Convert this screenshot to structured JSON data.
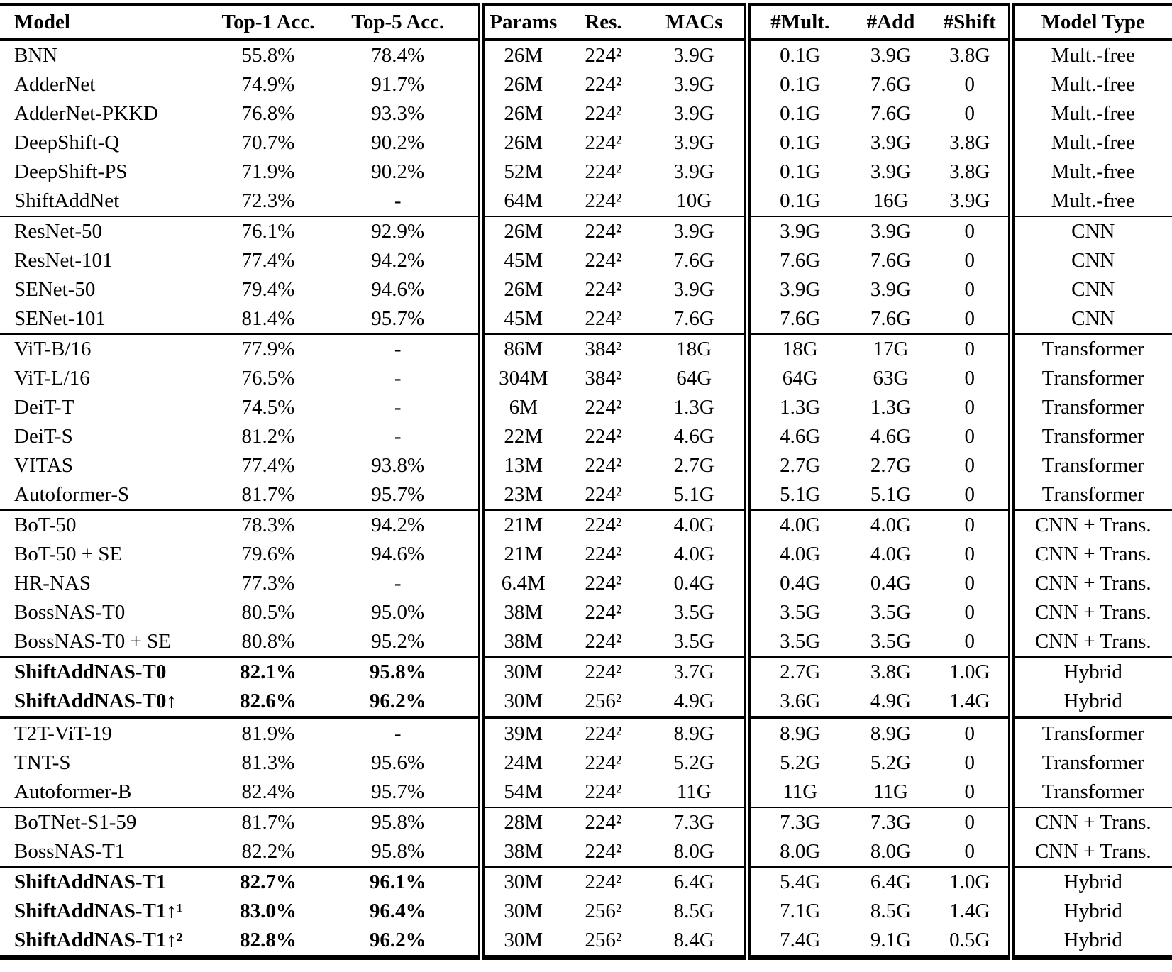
{
  "table": {
    "columns": [
      "Model",
      "Top-1 Acc.",
      "Top-5 Acc.",
      "Params",
      "Res.",
      "MACs",
      "#Mult.",
      "#Add",
      "#Shift",
      "Model Type"
    ],
    "sections": [
      {
        "divider_before": "none",
        "bold": false,
        "rows": [
          [
            "BNN",
            "55.8%",
            "78.4%",
            "26M",
            "224²",
            "3.9G",
            "0.1G",
            "3.9G",
            "3.8G",
            "Mult.-free"
          ],
          [
            "AdderNet",
            "74.9%",
            "91.7%",
            "26M",
            "224²",
            "3.9G",
            "0.1G",
            "7.6G",
            "0",
            "Mult.-free"
          ],
          [
            "AdderNet-PKKD",
            "76.8%",
            "93.3%",
            "26M",
            "224²",
            "3.9G",
            "0.1G",
            "7.6G",
            "0",
            "Mult.-free"
          ],
          [
            "DeepShift-Q",
            "70.7%",
            "90.2%",
            "26M",
            "224²",
            "3.9G",
            "0.1G",
            "3.9G",
            "3.8G",
            "Mult.-free"
          ],
          [
            "DeepShift-PS",
            "71.9%",
            "90.2%",
            "52M",
            "224²",
            "3.9G",
            "0.1G",
            "3.9G",
            "3.8G",
            "Mult.-free"
          ],
          [
            "ShiftAddNet",
            "72.3%",
            "-",
            "64M",
            "224²",
            "10G",
            "0.1G",
            "16G",
            "3.9G",
            "Mult.-free"
          ]
        ]
      },
      {
        "divider_before": "thin",
        "bold": false,
        "rows": [
          [
            "ResNet-50",
            "76.1%",
            "92.9%",
            "26M",
            "224²",
            "3.9G",
            "3.9G",
            "3.9G",
            "0",
            "CNN"
          ],
          [
            "ResNet-101",
            "77.4%",
            "94.2%",
            "45M",
            "224²",
            "7.6G",
            "7.6G",
            "7.6G",
            "0",
            "CNN"
          ],
          [
            "SENet-50",
            "79.4%",
            "94.6%",
            "26M",
            "224²",
            "3.9G",
            "3.9G",
            "3.9G",
            "0",
            "CNN"
          ],
          [
            "SENet-101",
            "81.4%",
            "95.7%",
            "45M",
            "224²",
            "7.6G",
            "7.6G",
            "7.6G",
            "0",
            "CNN"
          ]
        ]
      },
      {
        "divider_before": "thin",
        "bold": false,
        "rows": [
          [
            "ViT-B/16",
            "77.9%",
            "-",
            "86M",
            "384²",
            "18G",
            "18G",
            "17G",
            "0",
            "Transformer"
          ],
          [
            "ViT-L/16",
            "76.5%",
            "-",
            "304M",
            "384²",
            "64G",
            "64G",
            "63G",
            "0",
            "Transformer"
          ],
          [
            "DeiT-T",
            "74.5%",
            "-",
            "6M",
            "224²",
            "1.3G",
            "1.3G",
            "1.3G",
            "0",
            "Transformer"
          ],
          [
            "DeiT-S",
            "81.2%",
            "-",
            "22M",
            "224²",
            "4.6G",
            "4.6G",
            "4.6G",
            "0",
            "Transformer"
          ],
          [
            "VITAS",
            "77.4%",
            "93.8%",
            "13M",
            "224²",
            "2.7G",
            "2.7G",
            "2.7G",
            "0",
            "Transformer"
          ],
          [
            "Autoformer-S",
            "81.7%",
            "95.7%",
            "23M",
            "224²",
            "5.1G",
            "5.1G",
            "5.1G",
            "0",
            "Transformer"
          ]
        ]
      },
      {
        "divider_before": "thin",
        "bold": false,
        "rows": [
          [
            "BoT-50",
            "78.3%",
            "94.2%",
            "21M",
            "224²",
            "4.0G",
            "4.0G",
            "4.0G",
            "0",
            "CNN + Trans."
          ],
          [
            "BoT-50 + SE",
            "79.6%",
            "94.6%",
            "21M",
            "224²",
            "4.0G",
            "4.0G",
            "4.0G",
            "0",
            "CNN + Trans."
          ],
          [
            "HR-NAS",
            "77.3%",
            "-",
            "6.4M",
            "224²",
            "0.4G",
            "0.4G",
            "0.4G",
            "0",
            "CNN + Trans."
          ],
          [
            "BossNAS-T0",
            "80.5%",
            "95.0%",
            "38M",
            "224²",
            "3.5G",
            "3.5G",
            "3.5G",
            "0",
            "CNN + Trans."
          ],
          [
            "BossNAS-T0 + SE",
            "80.8%",
            "95.2%",
            "38M",
            "224²",
            "3.5G",
            "3.5G",
            "3.5G",
            "0",
            "CNN + Trans."
          ]
        ]
      },
      {
        "divider_before": "thin",
        "bold": true,
        "rows": [
          [
            "ShiftAddNAS-T0",
            "82.1%",
            "95.8%",
            "30M",
            "224²",
            "3.7G",
            "2.7G",
            "3.8G",
            "1.0G",
            "Hybrid"
          ],
          [
            "ShiftAddNAS-T0↑",
            "82.6%",
            "96.2%",
            "30M",
            "256²",
            "4.9G",
            "3.6G",
            "4.9G",
            "1.4G",
            "Hybrid"
          ]
        ]
      },
      {
        "divider_before": "thick",
        "bold": false,
        "rows": [
          [
            "T2T-ViT-19",
            "81.9%",
            "-",
            "39M",
            "224²",
            "8.9G",
            "8.9G",
            "8.9G",
            "0",
            "Transformer"
          ],
          [
            "TNT-S",
            "81.3%",
            "95.6%",
            "24M",
            "224²",
            "5.2G",
            "5.2G",
            "5.2G",
            "0",
            "Transformer"
          ],
          [
            "Autoformer-B",
            "82.4%",
            "95.7%",
            "54M",
            "224²",
            "11G",
            "11G",
            "11G",
            "0",
            "Transformer"
          ]
        ]
      },
      {
        "divider_before": "thin",
        "bold": false,
        "rows": [
          [
            "BoTNet-S1-59",
            "81.7%",
            "95.8%",
            "28M",
            "224²",
            "7.3G",
            "7.3G",
            "7.3G",
            "0",
            "CNN + Trans."
          ],
          [
            "BossNAS-T1",
            "82.2%",
            "95.8%",
            "38M",
            "224²",
            "8.0G",
            "8.0G",
            "8.0G",
            "0",
            "CNN + Trans."
          ]
        ]
      },
      {
        "divider_before": "thin",
        "bold": true,
        "rows": [
          [
            "ShiftAddNAS-T1",
            "82.7%",
            "96.1%",
            "30M",
            "224²",
            "6.4G",
            "5.4G",
            "6.4G",
            "1.0G",
            "Hybrid"
          ],
          [
            "ShiftAddNAS-T1↑¹",
            "83.0%",
            "96.4%",
            "30M",
            "256²",
            "8.5G",
            "7.1G",
            "8.5G",
            "1.4G",
            "Hybrid"
          ],
          [
            "ShiftAddNAS-T1↑²",
            "82.8%",
            "96.2%",
            "30M",
            "256²",
            "8.4G",
            "7.4G",
            "9.1G",
            "0.5G",
            "Hybrid"
          ]
        ]
      }
    ]
  }
}
